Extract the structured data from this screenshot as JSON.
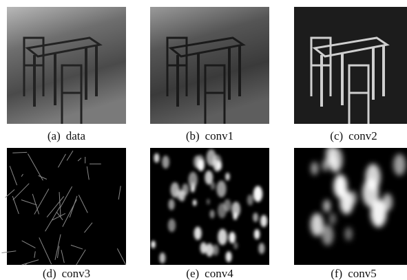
{
  "panels": [
    {
      "label": "(a)",
      "name": "data"
    },
    {
      "label": "(b)",
      "name": "conv1"
    },
    {
      "label": "(c)",
      "name": "conv2"
    },
    {
      "label": "(d)",
      "name": "conv3"
    },
    {
      "label": "(e)",
      "name": "conv4"
    },
    {
      "label": "(f)",
      "name": "conv5"
    }
  ]
}
